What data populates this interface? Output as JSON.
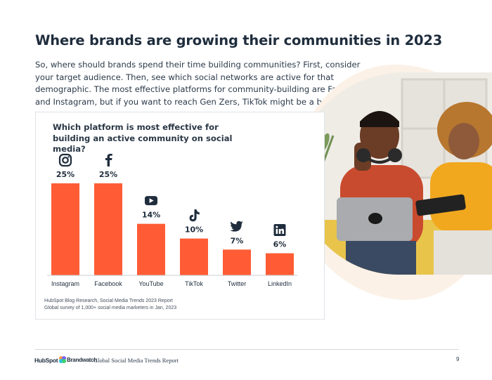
{
  "page": {
    "title": "Where brands are growing their communities in 2023",
    "intro": "So, where should brands spend their time building communities? First, consider your target audience. Then, see which social networks are active for that demographic. The most effective platforms for community-building are Facebook and Instagram, but if you want to reach Gen Zers, TikTok might be a better option."
  },
  "chart_data": {
    "type": "bar",
    "title": "Which platform is most effective for building an active community on social media?",
    "categories": [
      "Instagram",
      "Facebook",
      "YouTube",
      "TikTok",
      "Twitter",
      "LinkedIn"
    ],
    "values": [
      25,
      25,
      14,
      10,
      7,
      6
    ],
    "value_labels": [
      "25%",
      "25%",
      "14%",
      "10%",
      "7%",
      "6%"
    ],
    "icons": [
      "instagram-icon",
      "facebook-icon",
      "youtube-icon",
      "tiktok-icon",
      "twitter-icon",
      "linkedin-icon"
    ],
    "bar_color": "#ff5c35",
    "ylim": [
      0,
      25
    ],
    "grid": false,
    "source_line1": "HubSpot Blog Research, Social Media Trends 2023 Report",
    "source_line2": "Global survey of 1,000+ social media marketers in Jan, 2023"
  },
  "footer": {
    "hubspot_logo": "HubSpot",
    "brandwatch_logo": "Brandwatch",
    "report_name": "Global Social Media Trends Report",
    "page_number": "9"
  },
  "colors": {
    "accent": "#ff5c35",
    "blob": "#fbf1e6",
    "heading": "#1f2d3d"
  }
}
